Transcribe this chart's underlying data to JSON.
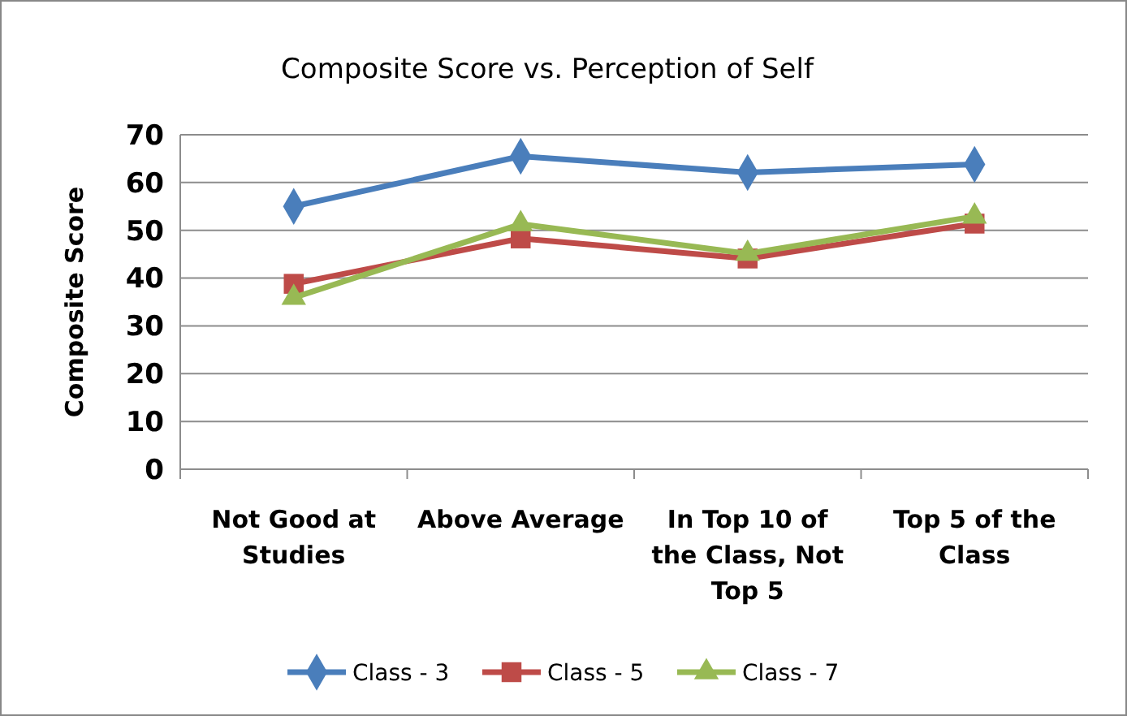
{
  "chart_data": {
    "type": "line",
    "title": "Composite Score vs. Perception of Self",
    "ylabel": "Composite Score",
    "categories": [
      "Not Good at Studies",
      "Above Average",
      "In Top 10 of the Class, Not Top 5",
      "Top 5 of the Class"
    ],
    "series": [
      {
        "name": "Class - 3",
        "color": "#4a7ebb",
        "marker": "diamond",
        "values": [
          55.0,
          65.5,
          62.1,
          63.8
        ]
      },
      {
        "name": "Class - 5",
        "color": "#be4b48",
        "marker": "square",
        "values": [
          38.8,
          48.3,
          44.1,
          51.4
        ]
      },
      {
        "name": "Class - 7",
        "color": "#98b954",
        "marker": "triangle",
        "values": [
          35.9,
          51.3,
          45.1,
          52.9
        ]
      }
    ],
    "ylim": [
      0,
      70
    ],
    "yticks": [
      0,
      10,
      20,
      30,
      40,
      50,
      60,
      70
    ],
    "grid": "y",
    "legend": "bottom",
    "line_style": "solid"
  }
}
